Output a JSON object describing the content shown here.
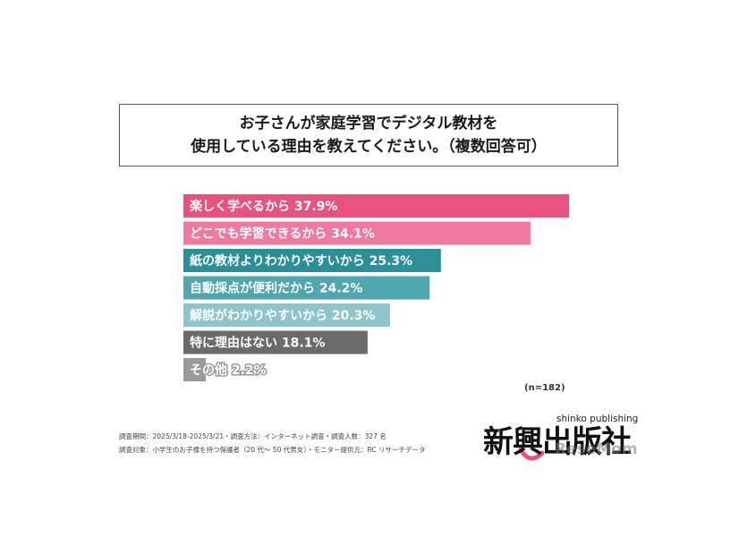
{
  "title": {
    "line1": "お子さんが家庭学習でデジタル教材を",
    "line2": "使用している理由を教えてください。（複数回答可）"
  },
  "chart_data": {
    "type": "bar",
    "orientation": "horizontal",
    "categories": [
      "楽しく学べるから",
      "どこでも学習できるから",
      "紙の教材よりわかりやすいから",
      "自動採点が便利だから",
      "解説がわかりやすいから",
      "特に理由はない",
      "その他"
    ],
    "values": [
      37.9,
      34.1,
      25.3,
      24.2,
      20.3,
      18.1,
      2.2
    ],
    "value_labels": [
      "37.9%",
      "34.1%",
      "25.3%",
      "24.2%",
      "20.3%",
      "18.1%",
      "2.2%"
    ],
    "colors": [
      "#e8527e",
      "#ee7aa0",
      "#2b8f98",
      "#4fa7b0",
      "#8dc5cb",
      "#6b6b6b",
      "#9a9a9a"
    ],
    "xlim": [
      0,
      40
    ],
    "grid": false,
    "legend": "none"
  },
  "n_label": "(n=182)",
  "footnotes": {
    "line1": "調査期間：2025/3/18-2025/3/21・調査方法：インターネット調査・調査人数：327 名",
    "line2": "調査対象：小学生のお子様を持つ保護者（20 代～ 50 代男女）・モニター提供元：RC リサーチデータ"
  },
  "logo": {
    "main": "新興出版社",
    "sub": "shinko publishing",
    "watermark": "ReseMom"
  }
}
